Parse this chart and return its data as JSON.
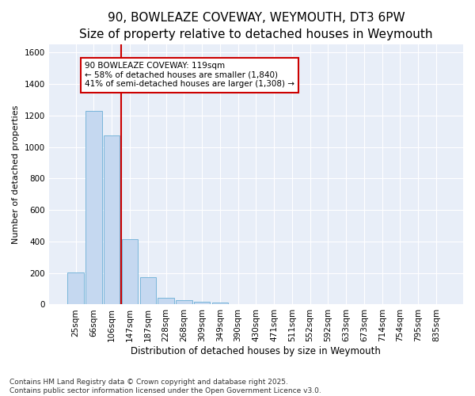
{
  "title": "90, BOWLEAZE COVEWAY, WEYMOUTH, DT3 6PW",
  "subtitle": "Size of property relative to detached houses in Weymouth",
  "xlabel": "Distribution of detached houses by size in Weymouth",
  "ylabel": "Number of detached properties",
  "bar_labels": [
    "25sqm",
    "66sqm",
    "106sqm",
    "147sqm",
    "187sqm",
    "228sqm",
    "268sqm",
    "309sqm",
    "349sqm",
    "390sqm",
    "430sqm",
    "471sqm",
    "511sqm",
    "552sqm",
    "592sqm",
    "633sqm",
    "673sqm",
    "714sqm",
    "754sqm",
    "795sqm",
    "835sqm"
  ],
  "bar_values": [
    205,
    1230,
    1075,
    415,
    175,
    45,
    25,
    15,
    10,
    0,
    0,
    0,
    0,
    0,
    0,
    0,
    0,
    0,
    0,
    0,
    0
  ],
  "bar_color": "#c5d8f0",
  "bar_edge_color": "#6aaed6",
  "vline_x": 2.5,
  "vline_color": "#cc0000",
  "annotation_text": "90 BOWLEAZE COVEWAY: 119sqm\n← 58% of detached houses are smaller (1,840)\n41% of semi-detached houses are larger (1,308) →",
  "annotation_box_color": "#cc0000",
  "ylim": [
    0,
    1650
  ],
  "yticks": [
    0,
    200,
    400,
    600,
    800,
    1000,
    1200,
    1400,
    1600
  ],
  "bg_color": "#e8eef8",
  "grid_color": "#ffffff",
  "footer": "Contains HM Land Registry data © Crown copyright and database right 2025.\nContains public sector information licensed under the Open Government Licence v3.0.",
  "title_fontsize": 11,
  "subtitle_fontsize": 9.5,
  "xlabel_fontsize": 8.5,
  "ylabel_fontsize": 8,
  "tick_fontsize": 7.5,
  "annotation_fontsize": 7.5,
  "footer_fontsize": 6.5
}
